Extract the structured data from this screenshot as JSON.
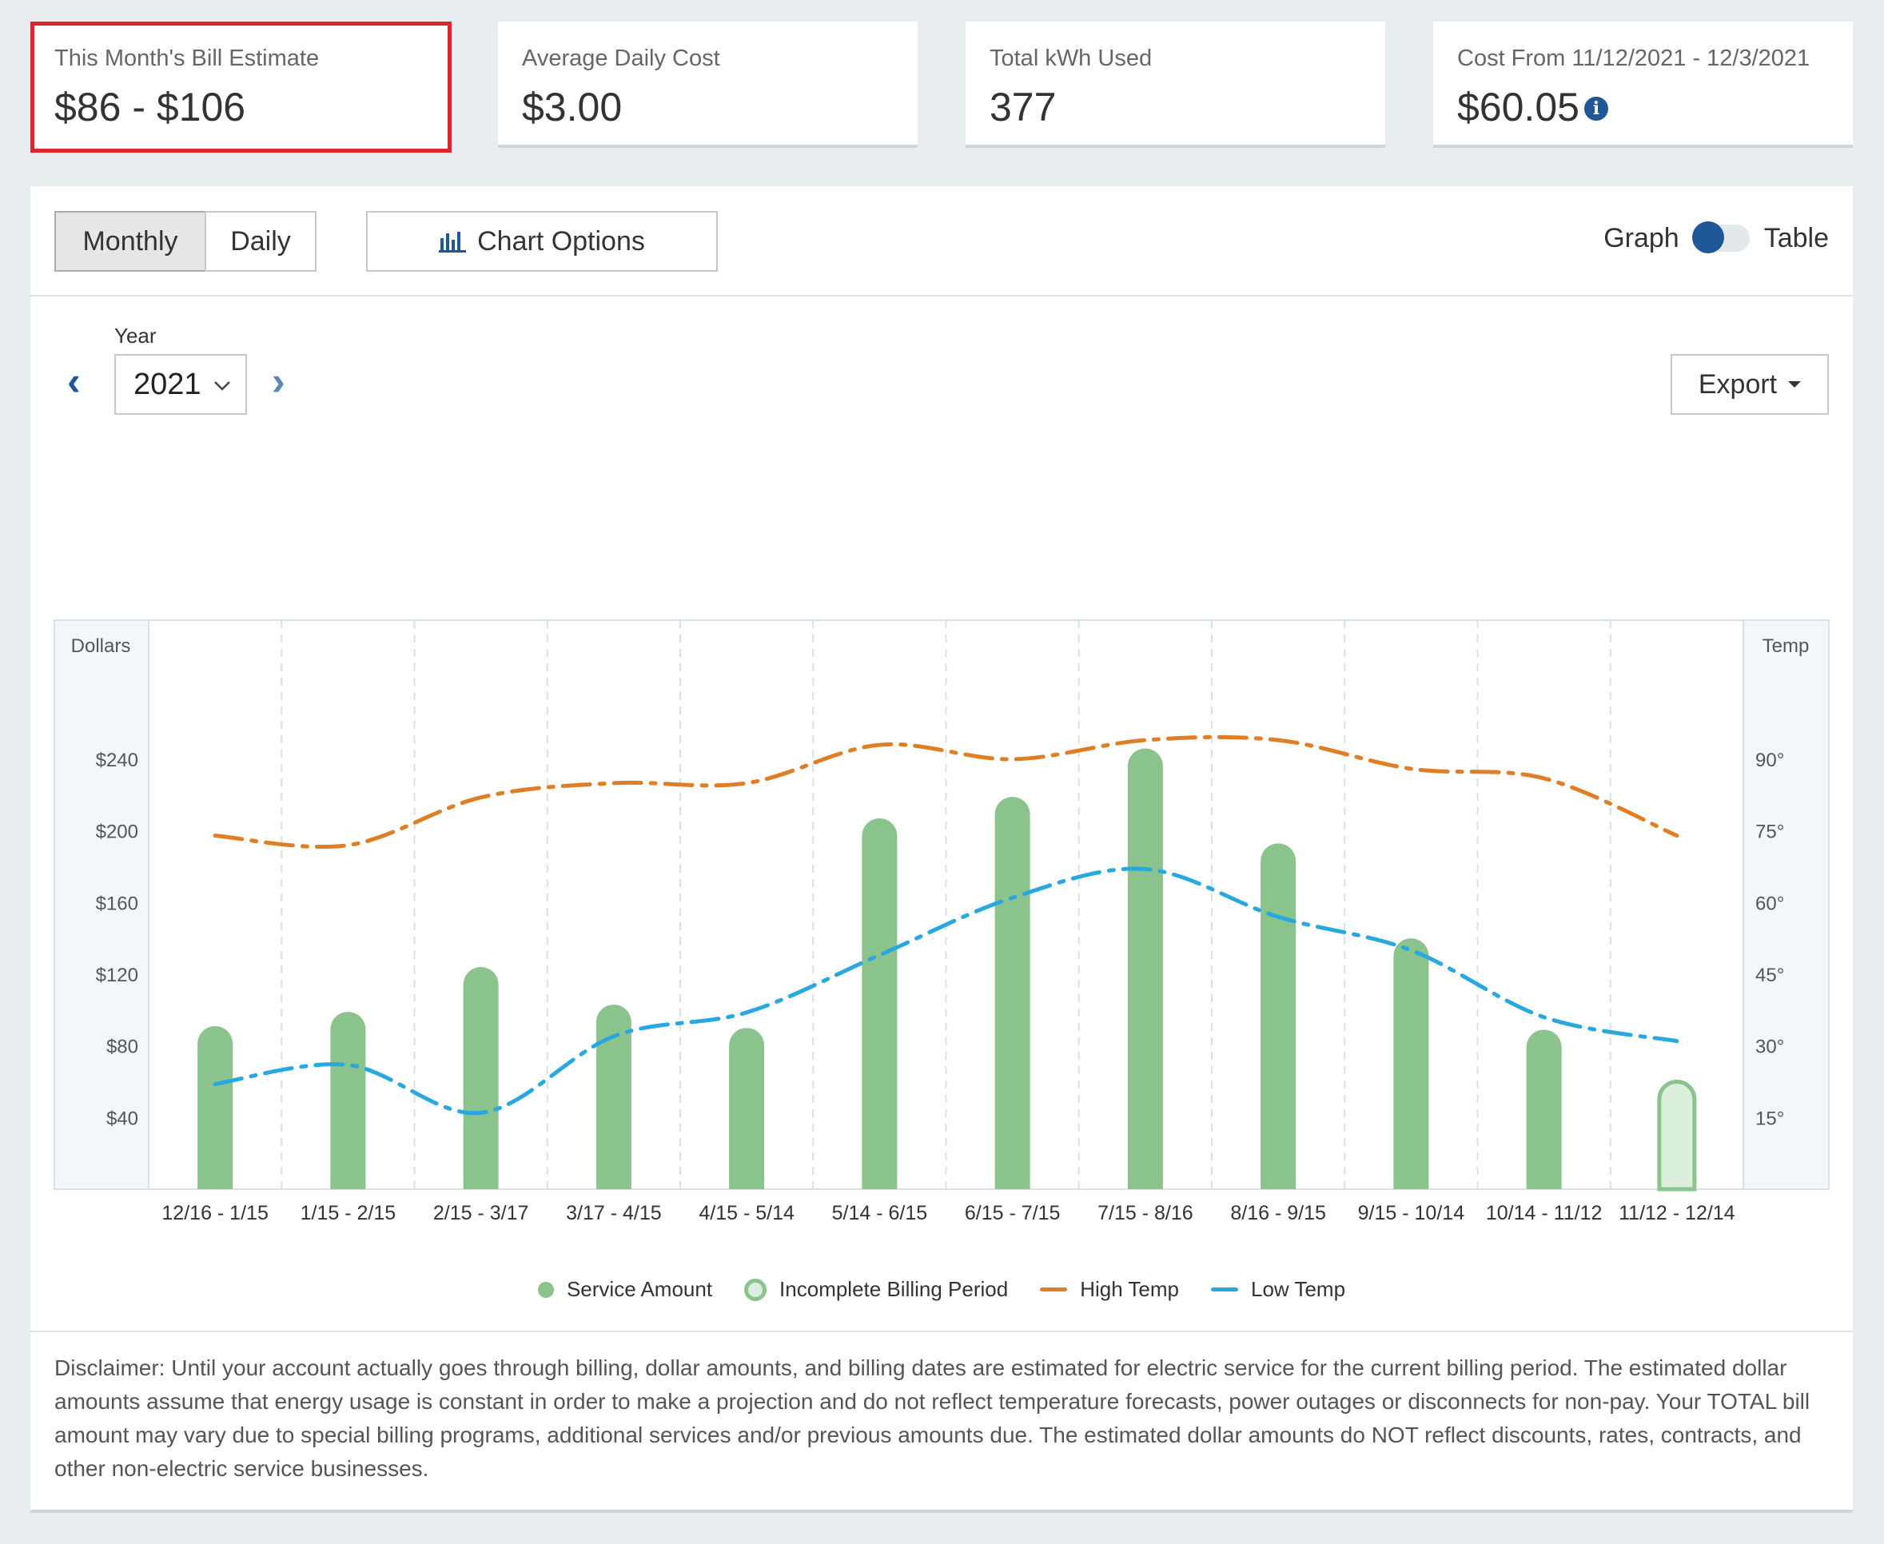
{
  "cards": [
    {
      "label": "This Month's Bill Estimate",
      "value": "$86 - $106"
    },
    {
      "label": "Average Daily Cost",
      "value": "$3.00"
    },
    {
      "label": "Total kWh Used",
      "value": "377"
    },
    {
      "label": "Cost From 11/12/2021 - 12/3/2021",
      "value": "$60.05"
    }
  ],
  "controls": {
    "monthly": "Monthly",
    "daily": "Daily",
    "chart_options": "Chart Options",
    "graph": "Graph",
    "table": "Table",
    "year_label": "Year",
    "year_value": "2021",
    "export": "Export"
  },
  "chart_data": {
    "type": "bar",
    "ylabel_left": "Dollars",
    "ylabel_right": "Temp",
    "left_ticks": [
      "$40",
      "$80",
      "$120",
      "$160",
      "$200",
      "$240"
    ],
    "right_ticks": [
      "15°",
      "30°",
      "45°",
      "60°",
      "75°",
      "90°"
    ],
    "left_range": [
      0,
      240
    ],
    "right_range": [
      0,
      90
    ],
    "categories": [
      "12/16 - 1/15",
      "1/15 - 2/15",
      "2/15 - 3/17",
      "3/17 - 4/15",
      "4/15 - 5/14",
      "5/14 - 6/15",
      "6/15 - 7/15",
      "7/15 - 8/16",
      "8/16 - 9/15",
      "9/15 - 10/14",
      "10/14 - 11/12",
      "11/12 - 12/14"
    ],
    "series": [
      {
        "name": "Service Amount",
        "values": [
          91,
          99,
          124,
          103,
          90,
          207,
          219,
          246,
          193,
          140,
          89,
          60
        ],
        "incomplete_index": 11
      },
      {
        "name": "High Temp",
        "values": [
          74,
          72,
          82,
          85,
          85,
          93,
          90,
          94,
          94,
          88,
          86,
          74
        ]
      },
      {
        "name": "Low Temp",
        "values": [
          22,
          26,
          16,
          32,
          37,
          49,
          61,
          67,
          57,
          50,
          36,
          31
        ]
      }
    ],
    "legend": [
      "Service Amount",
      "Incomplete Billing Period",
      "High Temp",
      "Low Temp"
    ],
    "colors": {
      "bar": "#8bc38d",
      "bar_incomplete": "#dcefdc",
      "high": "#e07e25",
      "low": "#29a8df"
    }
  },
  "disclaimer": "Disclaimer: Until your account actually goes through billing, dollar amounts, and billing dates are estimated for electric service for the current billing period. The estimated dollar amounts assume that energy usage is constant in order to make a projection and do not reflect temperature forecasts, power outages or disconnects for non-pay. Your TOTAL bill amount may vary due to special billing programs, additional services and/or previous amounts due. The estimated dollar amounts do NOT reflect discounts, rates, contracts, and other non-electric service businesses."
}
